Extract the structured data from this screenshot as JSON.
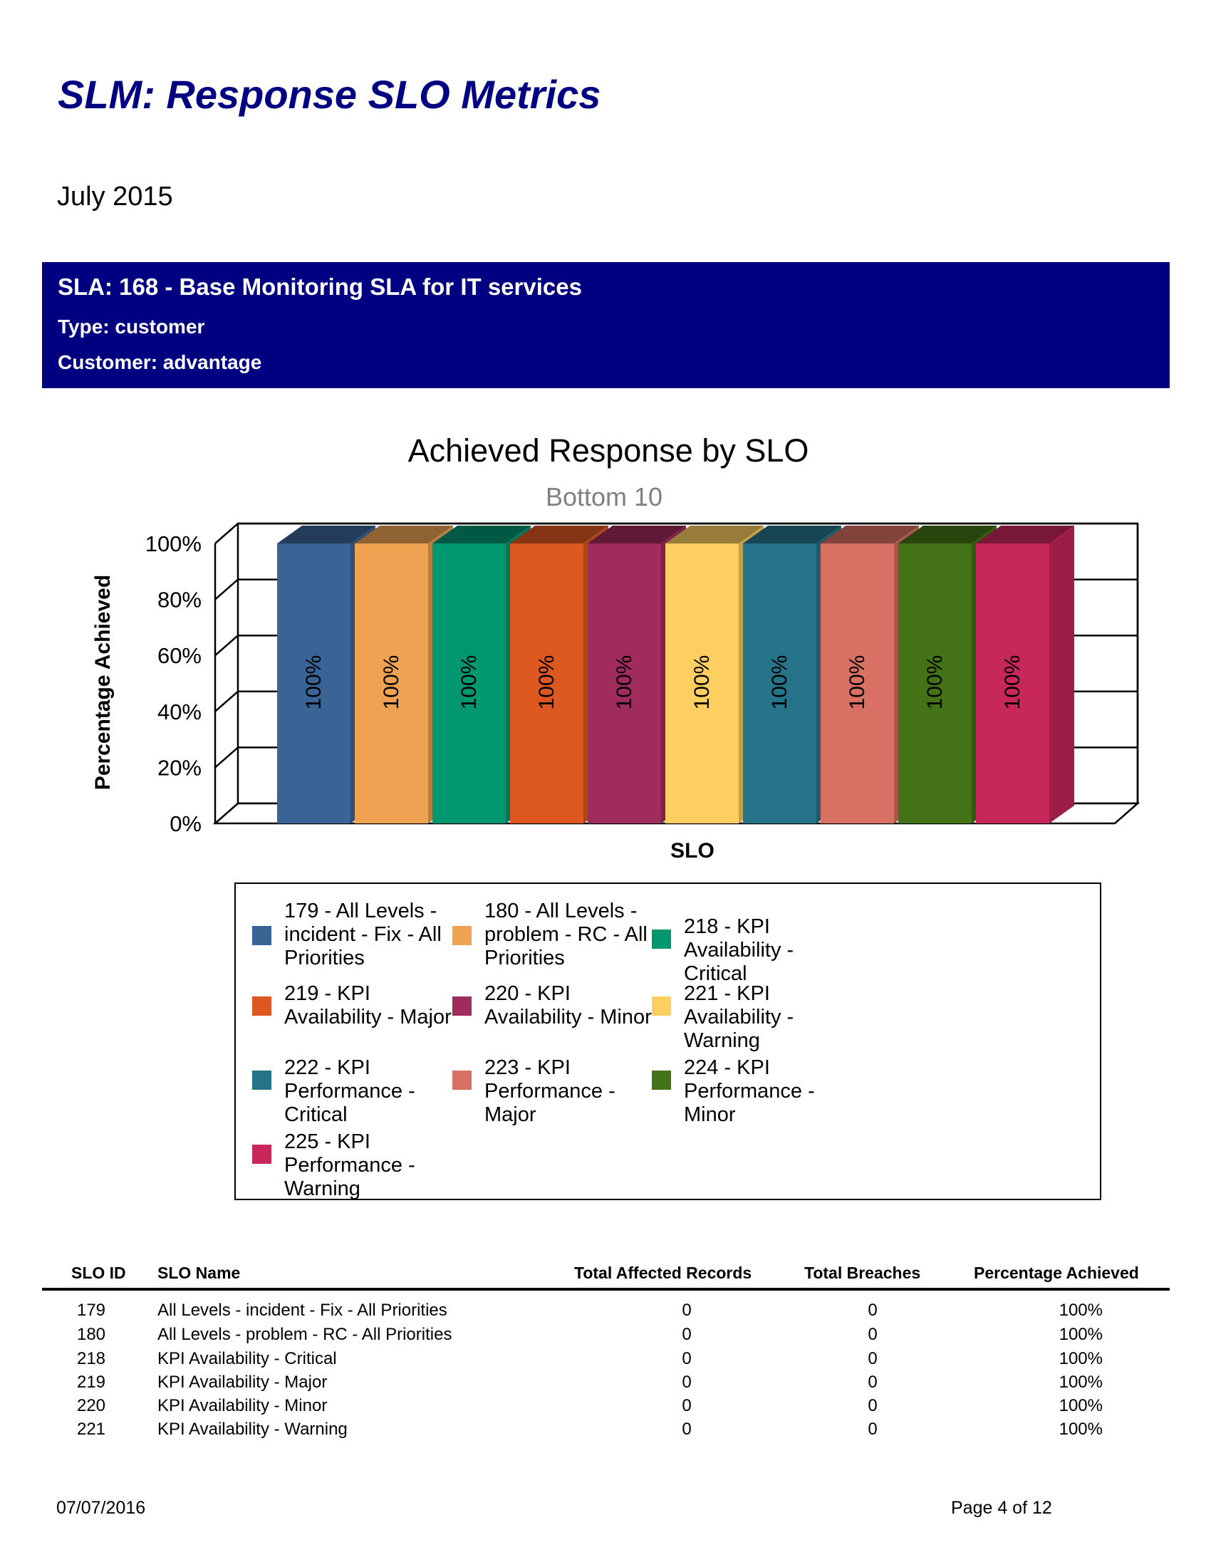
{
  "report": {
    "title": "SLM: Response SLO Metrics",
    "period": "July 2015"
  },
  "sla": {
    "heading": "SLA: 168 - Base Monitoring SLA for IT services",
    "type": "Type: customer",
    "customer": "Customer: advantage",
    "banner_color": "#000080"
  },
  "chart_data": {
    "type": "bar",
    "style": "3d",
    "title": "Achieved Response by SLO",
    "subtitle": "Bottom 10",
    "xlabel": "SLO",
    "ylabel": "Percentage Achieved",
    "ylim": [
      0,
      100
    ],
    "yticks": [
      "0%",
      "20%",
      "40%",
      "60%",
      "80%",
      "100%"
    ],
    "grid": true,
    "legend_placement": "bottom",
    "series": [
      {
        "name": "179 - All Levels - incident - Fix - All Priorities",
        "value": 100,
        "label": "100%",
        "color": "#3a6496"
      },
      {
        "name": "180 - All Levels - problem - RC - All Priorities",
        "value": 100,
        "label": "100%",
        "color": "#efa352"
      },
      {
        "name": "218 - KPI Availability - Critical",
        "value": 100,
        "label": "100%",
        "color": "#009670"
      },
      {
        "name": "219 - KPI Availability - Major",
        "value": 100,
        "label": "100%",
        "color": "#dd5820"
      },
      {
        "name": "220 - KPI Availability - Minor",
        "value": 100,
        "label": "100%",
        "color": "#a02c5e"
      },
      {
        "name": "221 - KPI Availability - Warning",
        "value": 100,
        "label": "100%",
        "color": "#fdcf60"
      },
      {
        "name": "222 - KPI Performance - Critical",
        "value": 100,
        "label": "100%",
        "color": "#27738a"
      },
      {
        "name": "223 - KPI Performance - Major",
        "value": 100,
        "label": "100%",
        "color": "#d97064"
      },
      {
        "name": "224 - KPI Performance - Minor",
        "value": 100,
        "label": "100%",
        "color": "#437316"
      },
      {
        "name": "225 - KPI Performance - Warning",
        "value": 100,
        "label": "100%",
        "color": "#c8275a"
      }
    ]
  },
  "table": {
    "headers": [
      "SLO ID",
      "SLO Name",
      "Total Affected Records",
      "Total Breaches",
      "Percentage Achieved"
    ],
    "rows": [
      [
        "179",
        "All Levels - incident - Fix - All Priorities",
        "0",
        "0",
        "100%"
      ],
      [
        "180",
        "All Levels - problem - RC - All Priorities",
        "0",
        "0",
        "100%"
      ],
      [
        "218",
        "KPI Availability - Critical",
        "0",
        "0",
        "100%"
      ],
      [
        "219",
        "KPI Availability - Major",
        "0",
        "0",
        "100%"
      ],
      [
        "220",
        "KPI Availability - Minor",
        "0",
        "0",
        "100%"
      ],
      [
        "221",
        "KPI Availability - Warning",
        "0",
        "0",
        "100%"
      ]
    ]
  },
  "footer": {
    "date": "07/07/2016",
    "page": "Page 4 of 12"
  }
}
